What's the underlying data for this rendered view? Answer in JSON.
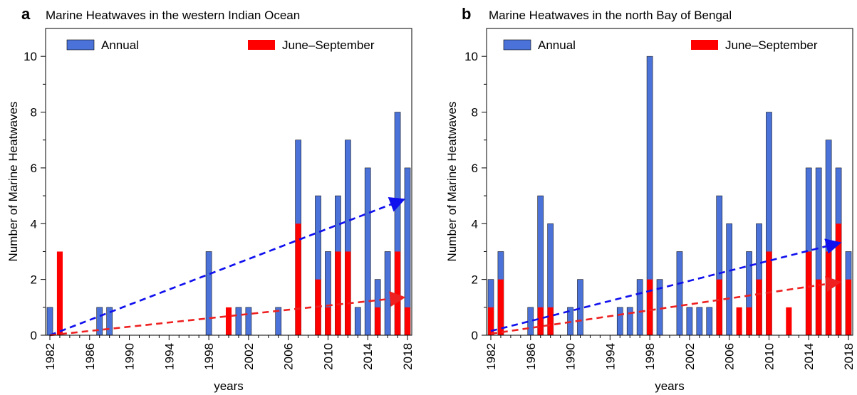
{
  "chart_data": [
    {
      "panel_label": "a",
      "type": "bar",
      "title": "Marine Heatwaves in the western Indian Ocean",
      "xlabel": "years",
      "ylabel": "Number of Marine Heatwaves",
      "ylim": [
        0,
        11
      ],
      "xlim": [
        1982,
        2018
      ],
      "x_ticks": [
        "1982",
        "1986",
        "1990",
        "1994",
        "1998",
        "2002",
        "2006",
        "2010",
        "2014",
        "2018"
      ],
      "y_ticks": [
        "0",
        "2",
        "4",
        "6",
        "8",
        "10"
      ],
      "grid": false,
      "legend_position": "top",
      "series": [
        {
          "name": "Annual",
          "color": "#4a72d8",
          "points": [
            {
              "x": 1982,
              "y": 1
            },
            {
              "x": 1987,
              "y": 1
            },
            {
              "x": 1988,
              "y": 1
            },
            {
              "x": 1998,
              "y": 3
            },
            {
              "x": 2001,
              "y": 1
            },
            {
              "x": 2002,
              "y": 1
            },
            {
              "x": 2005,
              "y": 1
            },
            {
              "x": 2007,
              "y": 7
            },
            {
              "x": 2009,
              "y": 5
            },
            {
              "x": 2010,
              "y": 3
            },
            {
              "x": 2011,
              "y": 5
            },
            {
              "x": 2012,
              "y": 7
            },
            {
              "x": 2013,
              "y": 1
            },
            {
              "x": 2014,
              "y": 6
            },
            {
              "x": 2015,
              "y": 2
            },
            {
              "x": 2016,
              "y": 3
            },
            {
              "x": 2017,
              "y": 8
            },
            {
              "x": 2018,
              "y": 6
            }
          ]
        },
        {
          "name": "June–September",
          "color": "#ff0000",
          "points": [
            {
              "x": 1983,
              "y": 3
            },
            {
              "x": 2000,
              "y": 1
            },
            {
              "x": 2007,
              "y": 4
            },
            {
              "x": 2009,
              "y": 2
            },
            {
              "x": 2010,
              "y": 1
            },
            {
              "x": 2011,
              "y": 3
            },
            {
              "x": 2012,
              "y": 3
            },
            {
              "x": 2015,
              "y": 1
            },
            {
              "x": 2017,
              "y": 3
            },
            {
              "x": 2018,
              "y": 1
            }
          ]
        }
      ],
      "trend_lines": [
        {
          "series": "Annual",
          "color": "#1010ee",
          "x": [
            1982,
            2017.5
          ],
          "y": [
            0,
            4.85
          ]
        },
        {
          "series": "June–September",
          "color": "#ee2020",
          "x": [
            1982,
            2017.5
          ],
          "y": [
            0,
            1.35
          ]
        }
      ]
    },
    {
      "panel_label": "b",
      "type": "bar",
      "title": "Marine Heatwaves in the north Bay of Bengal",
      "xlabel": "years",
      "ylabel": "Number of Marine Heatwaves",
      "ylim": [
        0,
        11
      ],
      "xlim": [
        1982,
        2018
      ],
      "x_ticks": [
        "1982",
        "1986",
        "1990",
        "1994",
        "1998",
        "2002",
        "2006",
        "2010",
        "2014",
        "2018"
      ],
      "y_ticks": [
        "0",
        "2",
        "4",
        "6",
        "8",
        "10"
      ],
      "grid": false,
      "legend_position": "top",
      "series": [
        {
          "name": "Annual",
          "color": "#4a72d8",
          "points": [
            {
              "x": 1982,
              "y": 2
            },
            {
              "x": 1983,
              "y": 3
            },
            {
              "x": 1986,
              "y": 1
            },
            {
              "x": 1987,
              "y": 5
            },
            {
              "x": 1988,
              "y": 4
            },
            {
              "x": 1990,
              "y": 1
            },
            {
              "x": 1991,
              "y": 2
            },
            {
              "x": 1995,
              "y": 1
            },
            {
              "x": 1996,
              "y": 1
            },
            {
              "x": 1997,
              "y": 2
            },
            {
              "x": 1998,
              "y": 10
            },
            {
              "x": 1999,
              "y": 2
            },
            {
              "x": 2001,
              "y": 3
            },
            {
              "x": 2002,
              "y": 1
            },
            {
              "x": 2003,
              "y": 1
            },
            {
              "x": 2004,
              "y": 1
            },
            {
              "x": 2005,
              "y": 5
            },
            {
              "x": 2006,
              "y": 4
            },
            {
              "x": 2008,
              "y": 3
            },
            {
              "x": 2009,
              "y": 4
            },
            {
              "x": 2010,
              "y": 8
            },
            {
              "x": 2014,
              "y": 6
            },
            {
              "x": 2015,
              "y": 6
            },
            {
              "x": 2016,
              "y": 7
            },
            {
              "x": 2017,
              "y": 6
            },
            {
              "x": 2018,
              "y": 3
            }
          ]
        },
        {
          "name": "June–September",
          "color": "#ff0000",
          "points": [
            {
              "x": 1982,
              "y": 1
            },
            {
              "x": 1983,
              "y": 2
            },
            {
              "x": 1987,
              "y": 1
            },
            {
              "x": 1988,
              "y": 1
            },
            {
              "x": 1998,
              "y": 2
            },
            {
              "x": 2005,
              "y": 2
            },
            {
              "x": 2007,
              "y": 1
            },
            {
              "x": 2008,
              "y": 1
            },
            {
              "x": 2009,
              "y": 2
            },
            {
              "x": 2010,
              "y": 3
            },
            {
              "x": 2012,
              "y": 1
            },
            {
              "x": 2014,
              "y": 3
            },
            {
              "x": 2015,
              "y": 2
            },
            {
              "x": 2016,
              "y": 3
            },
            {
              "x": 2017,
              "y": 4
            },
            {
              "x": 2018,
              "y": 2
            }
          ]
        }
      ],
      "trend_lines": [
        {
          "series": "Annual",
          "color": "#1010ee",
          "x": [
            1982,
            2017
          ],
          "y": [
            0.15,
            3.3
          ]
        },
        {
          "series": "June–September",
          "color": "#ee2020",
          "x": [
            1982,
            2017
          ],
          "y": [
            0.05,
            1.9
          ]
        }
      ]
    }
  ]
}
